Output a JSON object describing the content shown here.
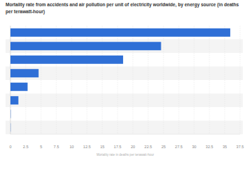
{
  "chart_data": {
    "type": "bar",
    "orientation": "horizontal",
    "title": "Mortality rate from accidents and air pollution per unit of electricity worldwide, by energy source (in deaths per terawatt-hour)",
    "x_label": "Mortality rate in deaths per terawatt-hour",
    "categories": [
      null,
      null,
      null,
      null,
      null,
      null,
      null,
      null
    ],
    "values": [
      35.9,
      24.6,
      18.4,
      4.6,
      2.8,
      1.3,
      0.04,
      0.03
    ],
    "color": "#2f6fd6",
    "xlim": [
      0,
      37.5
    ],
    "xticks": [
      0,
      2.5,
      5,
      7.5,
      10,
      12.5,
      15,
      17.5,
      20,
      22.5,
      25,
      27.5,
      30,
      32.5,
      35,
      37.5
    ],
    "grid": true
  }
}
